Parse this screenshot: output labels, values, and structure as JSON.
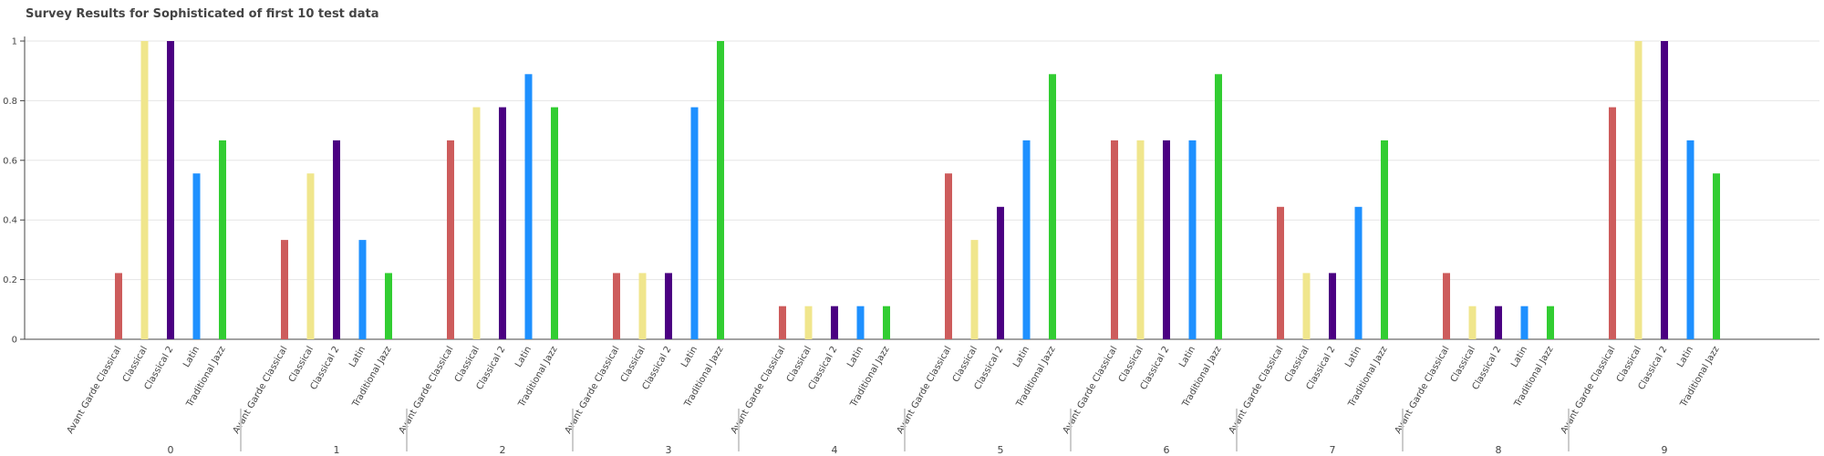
{
  "chart_data": {
    "type": "bar",
    "title": "Survey Results for Sophisticated of first 10 test data",
    "xlabel": "",
    "ylabel": "",
    "ylim": [
      0,
      1
    ],
    "yticks": [
      "0",
      "0.2",
      "0.4",
      "0.6",
      "0.8",
      "1"
    ],
    "grid": true,
    "groups": [
      "0",
      "1",
      "2",
      "3",
      "4",
      "5",
      "6",
      "7",
      "8",
      "9"
    ],
    "categories": [
      "Avant Garde Classical",
      "Classical",
      "Classical 2",
      "Latin",
      "Traditional Jazz"
    ],
    "colors": [
      "#cd5c5c",
      "#f0e68c",
      "#4b0082",
      "#1e90ff",
      "#32cd32"
    ],
    "values": [
      [
        0.222,
        1.0,
        1.0,
        0.556,
        0.667
      ],
      [
        0.333,
        0.556,
        0.667,
        0.333,
        0.222
      ],
      [
        0.667,
        0.778,
        0.778,
        0.889,
        0.778
      ],
      [
        0.222,
        0.222,
        0.222,
        0.778,
        1.0
      ],
      [
        0.111,
        0.111,
        0.111,
        0.111,
        0.111
      ],
      [
        0.556,
        0.333,
        0.444,
        0.667,
        0.889
      ],
      [
        0.667,
        0.667,
        0.667,
        0.667,
        0.889
      ],
      [
        0.444,
        0.222,
        0.222,
        0.444,
        0.667
      ],
      [
        0.222,
        0.111,
        0.111,
        0.111,
        0.111
      ],
      [
        0.778,
        1.0,
        1.0,
        0.667,
        0.556
      ]
    ]
  }
}
